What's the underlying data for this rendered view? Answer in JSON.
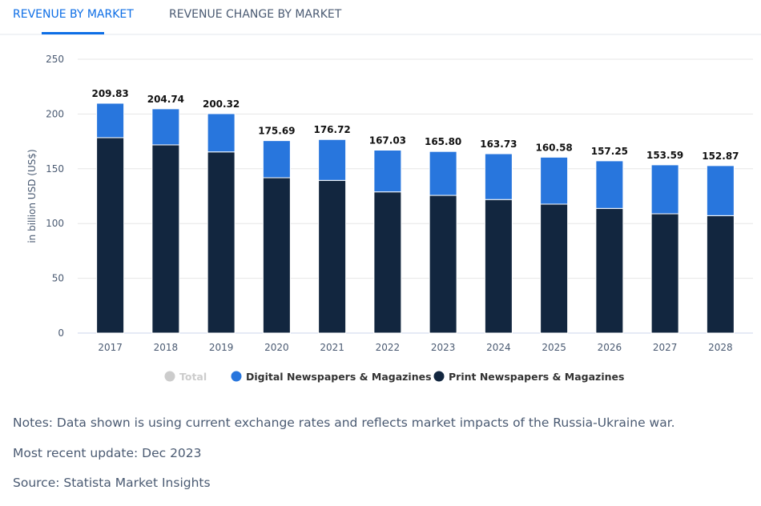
{
  "tabs": [
    {
      "label": "REVENUE BY MARKET",
      "active": true
    },
    {
      "label": "REVENUE CHANGE BY MARKET",
      "active": false
    }
  ],
  "chart_data": {
    "type": "bar",
    "stacked": true,
    "categories": [
      "2017",
      "2018",
      "2019",
      "2020",
      "2021",
      "2022",
      "2023",
      "2024",
      "2025",
      "2026",
      "2027",
      "2028"
    ],
    "series": [
      {
        "name": "Print Newspapers & Magazines",
        "color": "#12263f",
        "values": [
          178.4,
          171.8,
          165.4,
          141.8,
          139.4,
          128.9,
          125.7,
          121.9,
          117.7,
          113.8,
          108.9,
          107.2
        ]
      },
      {
        "name": "Digital Newspapers & Magazines",
        "color": "#2876dd",
        "values": [
          31.43,
          32.94,
          34.92,
          33.89,
          37.32,
          38.13,
          40.1,
          41.83,
          42.88,
          43.45,
          44.69,
          45.67
        ]
      }
    ],
    "totals": [
      "209.83",
      "204.74",
      "200.32",
      "175.69",
      "176.72",
      "167.03",
      "165.80",
      "163.73",
      "160.58",
      "157.25",
      "153.59",
      "152.87"
    ],
    "legend": [
      {
        "name": "Total",
        "color": "#cccccc",
        "disabled": true
      },
      {
        "name": "Digital Newspapers & Magazines",
        "color": "#2876dd"
      },
      {
        "name": "Print Newspapers & Magazines",
        "color": "#12263f"
      }
    ],
    "ylabel": "in billion USD (US$)",
    "yticks": [
      "0",
      "50",
      "100",
      "150",
      "200",
      "250"
    ],
    "ylim": [
      0,
      250
    ],
    "grid": true,
    "legend_position": "bottom"
  },
  "notes": {
    "note": "Notes: Data shown is using current exchange rates and reflects market impacts of the Russia-Ukraine war.",
    "update": "Most recent update: Dec 2023",
    "source": "Source: Statista Market Insights"
  }
}
